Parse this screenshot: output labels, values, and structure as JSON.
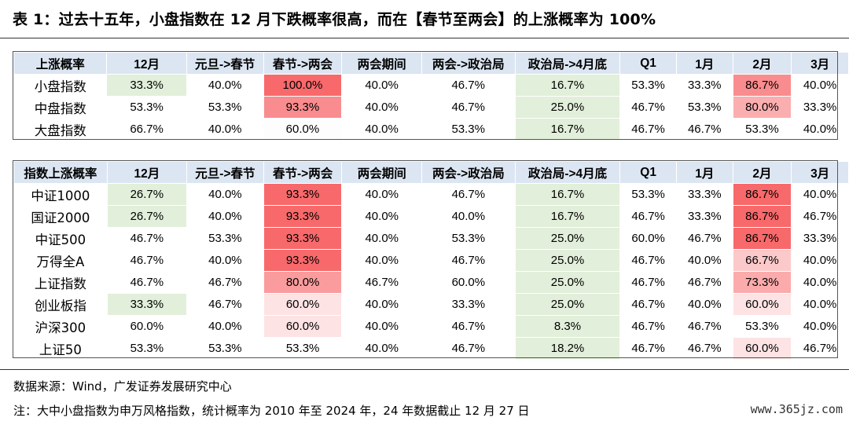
{
  "title": "表 1：过去十五年，小盘指数在 12 月下跌概率很高，而在【春节至两会】的上涨概率为 100%",
  "columns": [
    "12月",
    "元旦->春节",
    "春节->两会",
    "两会期间",
    "两会->政治局",
    "政治局->4月底",
    "Q1",
    "1月",
    "2月",
    "3月"
  ],
  "table1": {
    "header": "上涨概率",
    "rows": [
      {
        "label": "小盘指数",
        "values": [
          "33.3%",
          "40.0%",
          "100.0%",
          "40.0%",
          "46.7%",
          "16.7%",
          "53.3%",
          "33.3%",
          "86.7%",
          "40.0%"
        ]
      },
      {
        "label": "中盘指数",
        "values": [
          "53.3%",
          "53.3%",
          "93.3%",
          "40.0%",
          "46.7%",
          "25.0%",
          "46.7%",
          "53.3%",
          "80.0%",
          "33.3%"
        ]
      },
      {
        "label": "大盘指数",
        "values": [
          "66.7%",
          "40.0%",
          "60.0%",
          "40.0%",
          "53.3%",
          "16.7%",
          "46.7%",
          "46.7%",
          "53.3%",
          "40.0%"
        ]
      }
    ],
    "colors": [
      [
        "#e2efda",
        "#ffffff",
        "#f8696b",
        "#ffffff",
        "#ffffff",
        "#e2efda",
        "#ffffff",
        "#ffffff",
        "#f98c8e",
        "#ffffff"
      ],
      [
        "#ffffff",
        "#ffffff",
        "#f98c8e",
        "#ffffff",
        "#ffffff",
        "#e2efda",
        "#ffffff",
        "#ffffff",
        "#fbaeb0",
        "#ffffff"
      ],
      [
        "#ffffff",
        "#ffffff",
        "#fdfdfd",
        "#ffffff",
        "#ffffff",
        "#e2efda",
        "#ffffff",
        "#ffffff",
        "#ffffff",
        "#ffffff"
      ]
    ]
  },
  "table2": {
    "header": "指数上涨概率",
    "rows": [
      {
        "label": "中证1000",
        "values": [
          "26.7%",
          "40.0%",
          "93.3%",
          "40.0%",
          "46.7%",
          "16.7%",
          "53.3%",
          "33.3%",
          "86.7%",
          "40.0%"
        ]
      },
      {
        "label": "国证2000",
        "values": [
          "26.7%",
          "40.0%",
          "93.3%",
          "40.0%",
          "40.0%",
          "16.7%",
          "46.7%",
          "33.3%",
          "86.7%",
          "46.7%"
        ]
      },
      {
        "label": "中证500",
        "values": [
          "46.7%",
          "53.3%",
          "93.3%",
          "40.0%",
          "53.3%",
          "25.0%",
          "60.0%",
          "46.7%",
          "86.7%",
          "33.3%"
        ]
      },
      {
        "label": "万得全A",
        "values": [
          "46.7%",
          "40.0%",
          "93.3%",
          "40.0%",
          "46.7%",
          "25.0%",
          "46.7%",
          "40.0%",
          "66.7%",
          "40.0%"
        ]
      },
      {
        "label": "上证指数",
        "values": [
          "46.7%",
          "46.7%",
          "80.0%",
          "46.7%",
          "60.0%",
          "25.0%",
          "46.7%",
          "46.7%",
          "73.3%",
          "40.0%"
        ]
      },
      {
        "label": "创业板指",
        "values": [
          "33.3%",
          "46.7%",
          "60.0%",
          "40.0%",
          "33.3%",
          "25.0%",
          "46.7%",
          "40.0%",
          "60.0%",
          "40.0%"
        ]
      },
      {
        "label": "沪深300",
        "values": [
          "60.0%",
          "40.0%",
          "60.0%",
          "40.0%",
          "46.7%",
          "8.3%",
          "46.7%",
          "46.7%",
          "53.3%",
          "40.0%"
        ]
      },
      {
        "label": "上证50",
        "values": [
          "53.3%",
          "53.3%",
          "53.3%",
          "40.0%",
          "46.7%",
          "18.2%",
          "46.7%",
          "46.7%",
          "60.0%",
          "46.7%"
        ]
      }
    ],
    "colors": [
      [
        "#e2efda",
        "#ffffff",
        "#f8696b",
        "#ffffff",
        "#ffffff",
        "#e2efda",
        "#ffffff",
        "#ffffff",
        "#f8696b",
        "#ffffff"
      ],
      [
        "#e2efda",
        "#ffffff",
        "#f8696b",
        "#ffffff",
        "#ffffff",
        "#e2efda",
        "#ffffff",
        "#ffffff",
        "#f8696b",
        "#ffffff"
      ],
      [
        "#ffffff",
        "#ffffff",
        "#f8696b",
        "#ffffff",
        "#ffffff",
        "#e2efda",
        "#ffffff",
        "#ffffff",
        "#f8696b",
        "#ffffff"
      ],
      [
        "#ffffff",
        "#ffffff",
        "#f8696b",
        "#ffffff",
        "#ffffff",
        "#e2efda",
        "#ffffff",
        "#ffffff",
        "#fcc9ca",
        "#ffffff"
      ],
      [
        "#ffffff",
        "#ffffff",
        "#fa9c9d",
        "#ffffff",
        "#ffffff",
        "#e2efda",
        "#ffffff",
        "#ffffff",
        "#fbabac",
        "#ffffff"
      ],
      [
        "#e2efda",
        "#ffffff",
        "#fde3e4",
        "#ffffff",
        "#ffffff",
        "#e2efda",
        "#ffffff",
        "#ffffff",
        "#fde3e4",
        "#ffffff"
      ],
      [
        "#ffffff",
        "#ffffff",
        "#fde3e4",
        "#ffffff",
        "#ffffff",
        "#e2efda",
        "#ffffff",
        "#ffffff",
        "#ffffff",
        "#ffffff"
      ],
      [
        "#ffffff",
        "#ffffff",
        "#ffffff",
        "#ffffff",
        "#ffffff",
        "#e2efda",
        "#ffffff",
        "#ffffff",
        "#fde3e4",
        "#ffffff"
      ]
    ]
  },
  "source": "数据来源：Wind，广发证券发展研究中心",
  "note": "注：大中小盘指数为申万风格指数，统计概率为 2010 年至 2024 年，24 年数据截止 12 月 27 日",
  "watermark": "www.365jz.com"
}
